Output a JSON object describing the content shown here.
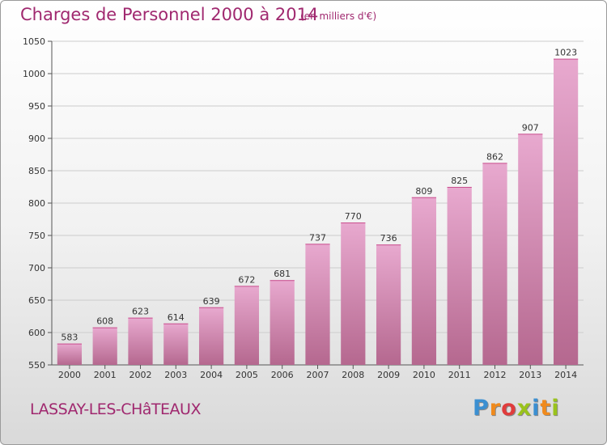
{
  "header": {
    "title": "Charges de Personnel 2000 à 2014",
    "subtitle": "(en milliers d'€)"
  },
  "footer": {
    "commune": "LASSAY-LES-CHâTEAUX",
    "logo": "Proxiti"
  },
  "colors": {
    "title": "#a0286f",
    "bar_top": "#e8a9cf",
    "bar_bottom": "#b5688f",
    "logo_letters": [
      "#3b8fd1",
      "#f08a1c",
      "#e03c3c",
      "#9ac31c",
      "#3b8fd1",
      "#f08a1c",
      "#9ac31c"
    ]
  },
  "chart_data": {
    "type": "bar",
    "categories": [
      "2000",
      "2001",
      "2002",
      "2003",
      "2004",
      "2005",
      "2006",
      "2007",
      "2008",
      "2009",
      "2010",
      "2011",
      "2012",
      "2013",
      "2014"
    ],
    "values": [
      583,
      608,
      623,
      614,
      639,
      672,
      681,
      737,
      770,
      736,
      809,
      825,
      862,
      907,
      1023
    ],
    "ylim": [
      550,
      1050
    ],
    "yticks": [
      550,
      600,
      650,
      700,
      750,
      800,
      850,
      900,
      950,
      1000,
      1050
    ],
    "grid": true,
    "data_labels": true
  }
}
